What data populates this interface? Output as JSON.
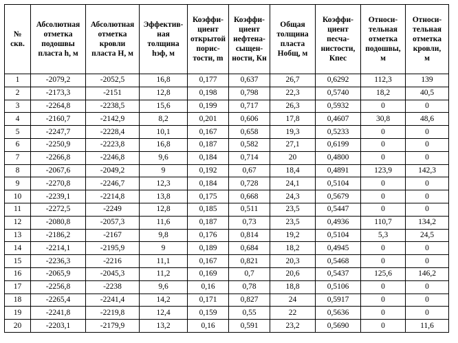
{
  "table": {
    "headers": [
      "№\nскв.",
      "Абсолютная\nотметка\nподошвы\nпласта h, м",
      "Абсолютная\nотметка\nкровли\nпласта H, м",
      "Эффектив-\nная\nтолщина\nhэф, м",
      "Коэффи-\nциент\nоткрытой\nпорис-\nтости, m",
      "Коэффи-\nциент\nнефтена-\nсыщен-\nности, Кн",
      "Общая\nтолщина\nпласта\nHобщ, м",
      "Коэффи-\nциент\nпесча-\nнистости,\nКпес",
      "Относи-\nтельная\nотметка\nподошвы,\nм",
      "Относи-\nтельная\nотметка\nкровли,\nм"
    ],
    "rows": [
      [
        "1",
        "-2079,2",
        "-2052,5",
        "16,8",
        "0,177",
        "0,637",
        "26,7",
        "0,6292",
        "112,3",
        "139"
      ],
      [
        "2",
        "-2173,3",
        "-2151",
        "12,8",
        "0,198",
        "0,798",
        "22,3",
        "0,5740",
        "18,2",
        "40,5"
      ],
      [
        "3",
        "-2264,8",
        "-2238,5",
        "15,6",
        "0,199",
        "0,717",
        "26,3",
        "0,5932",
        "0",
        "0"
      ],
      [
        "4",
        "-2160,7",
        "-2142,9",
        "8,2",
        "0,201",
        "0,606",
        "17,8",
        "0,4607",
        "30,8",
        "48,6"
      ],
      [
        "5",
        "-2247,7",
        "-2228,4",
        "10,1",
        "0,167",
        "0,658",
        "19,3",
        "0,5233",
        "0",
        "0"
      ],
      [
        "6",
        "-2250,9",
        "-2223,8",
        "16,8",
        "0,187",
        "0,582",
        "27,1",
        "0,6199",
        "0",
        "0"
      ],
      [
        "7",
        "-2266,8",
        "-2246,8",
        "9,6",
        "0,184",
        "0,714",
        "20",
        "0,4800",
        "0",
        "0"
      ],
      [
        "8",
        "-2067,6",
        "-2049,2",
        "9",
        "0,192",
        "0,67",
        "18,4",
        "0,4891",
        "123,9",
        "142,3"
      ],
      [
        "9",
        "-2270,8",
        "-2246,7",
        "12,3",
        "0,184",
        "0,728",
        "24,1",
        "0,5104",
        "0",
        "0"
      ],
      [
        "10",
        "-2239,1",
        "-2214,8",
        "13,8",
        "0,175",
        "0,668",
        "24,3",
        "0,5679",
        "0",
        "0"
      ],
      [
        "11",
        "-2272,5",
        "-2249",
        "12,8",
        "0,185",
        "0,511",
        "23,5",
        "0,5447",
        "0",
        "0"
      ],
      [
        "12",
        "-2080,8",
        "-2057,3",
        "11,6",
        "0,187",
        "0,73",
        "23,5",
        "0,4936",
        "110,7",
        "134,2"
      ],
      [
        "13",
        "-2186,2",
        "-2167",
        "9,8",
        "0,176",
        "0,814",
        "19,2",
        "0,5104",
        "5,3",
        "24,5"
      ],
      [
        "14",
        "-2214,1",
        "-2195,9",
        "9",
        "0,189",
        "0,684",
        "18,2",
        "0,4945",
        "0",
        "0"
      ],
      [
        "15",
        "-2236,3",
        "-2216",
        "11,1",
        "0,167",
        "0,821",
        "20,3",
        "0,5468",
        "0",
        "0"
      ],
      [
        "16",
        "-2065,9",
        "-2045,3",
        "11,2",
        "0,169",
        "0,7",
        "20,6",
        "0,5437",
        "125,6",
        "146,2"
      ],
      [
        "17",
        "-2256,8",
        "-2238",
        "9,6",
        "0,16",
        "0,78",
        "18,8",
        "0,5106",
        "0",
        "0"
      ],
      [
        "18",
        "-2265,4",
        "-2241,4",
        "14,2",
        "0,171",
        "0,827",
        "24",
        "0,5917",
        "0",
        "0"
      ],
      [
        "19",
        "-2241,8",
        "-2219,8",
        "12,4",
        "0,159",
        "0,55",
        "22",
        "0,5636",
        "0",
        "0"
      ],
      [
        "20",
        "-2203,1",
        "-2179,9",
        "13,2",
        "0,16",
        "0,591",
        "23,2",
        "0,5690",
        "0",
        "11,6"
      ]
    ]
  }
}
